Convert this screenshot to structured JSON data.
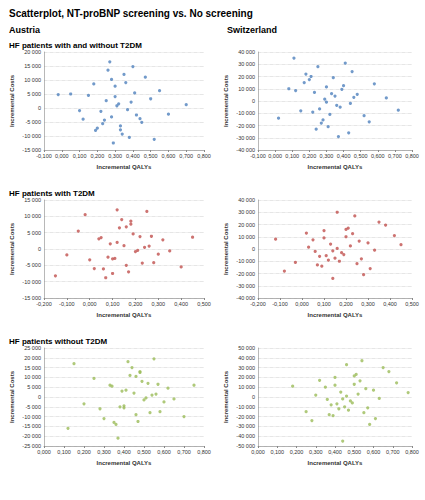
{
  "title": "Scatterplot, NT-proBNP screening vs. No screening",
  "columns": [
    "Austria",
    "Switzerland"
  ],
  "rows": [
    "HF patients with and without T2DM",
    "HF patients with T2DM",
    "HF patients without T2DM"
  ],
  "chart_data": [
    {
      "type": "scatter",
      "xlabel": "Incremental QALYs",
      "ylabel": "Incremental Costs",
      "xlim": [
        -0.1,
        0.8
      ],
      "xticks": [
        {
          "value": -0.1,
          "label": "-0,100"
        },
        {
          "value": 0,
          "label": "0,000"
        },
        {
          "value": 0.1,
          "label": "0,100"
        },
        {
          "value": 0.2,
          "label": "0,200"
        },
        {
          "value": 0.3,
          "label": "0,300"
        },
        {
          "value": 0.4,
          "label": "0,400"
        },
        {
          "value": 0.5,
          "label": "0,500"
        },
        {
          "value": 0.6,
          "label": "0,600"
        },
        {
          "value": 0.7,
          "label": "0,700"
        },
        {
          "value": 0.8,
          "label": "0,800"
        }
      ],
      "ylim": [
        -15000,
        20000
      ],
      "yticks": [
        {
          "value": -15000,
          "label": "-15 000"
        },
        {
          "value": -10000,
          "label": "-10 000"
        },
        {
          "value": -5000,
          "label": "-5 000"
        },
        0,
        {
          "value": 5000,
          "label": "5 000"
        },
        {
          "value": 10000,
          "label": "10 000"
        },
        {
          "value": 15000,
          "label": "15 000"
        },
        {
          "value": 20000,
          "label": "20 000"
        }
      ],
      "grid": true,
      "color": "#4f81bd",
      "marker": "circle",
      "x": [
        0.32,
        0.28,
        0.41,
        0.19,
        0.35,
        0.25,
        0.45,
        0.3,
        0.22,
        0.38,
        0.5,
        0.15,
        0.33,
        0.27,
        0.42,
        0.36,
        0.1,
        0.29,
        0.55,
        0.24,
        0.31,
        0.47,
        0.2,
        0.39,
        0.34,
        0.26,
        0.05,
        0.44,
        0.37,
        0.3,
        0.6,
        0.18,
        0.52,
        0.23,
        0.4,
        -0.02,
        0.33,
        0.28,
        0.7,
        0.12
      ],
      "values": [
        1500,
        -3200,
        5400,
        -8000,
        12000,
        2600,
        -5100,
        7800,
        -1200,
        -10500,
        3300,
        4500,
        -6400,
        16500,
        -2500,
        9100,
        -900,
        -12500,
        6200,
        -4300,
        800,
        11000,
        -7200,
        2100,
        -9300,
        13500,
        5000,
        -3800,
        -600,
        4100,
        -2200,
        8600,
        -11200,
        -5600,
        14800,
        4800,
        -7800,
        10200,
        1200,
        -4000
      ]
    },
    {
      "type": "scatter",
      "xlabel": "Incremental QALYs",
      "ylabel": "Incremental Costs",
      "xlim": [
        -0.1,
        0.8
      ],
      "xticks": [
        {
          "value": -0.1,
          "label": "-0,100"
        },
        {
          "value": 0,
          "label": "0,000"
        },
        {
          "value": 0.1,
          "label": "0,100"
        },
        {
          "value": 0.2,
          "label": "0,200"
        },
        {
          "value": 0.3,
          "label": "0,300"
        },
        {
          "value": 0.4,
          "label": "0,400"
        },
        {
          "value": 0.5,
          "label": "0,500"
        },
        {
          "value": 0.6,
          "label": "0,600"
        },
        {
          "value": 0.7,
          "label": "0,700"
        },
        {
          "value": 0.8,
          "label": "0,800"
        }
      ],
      "ylim": [
        -40000,
        40000
      ],
      "yticks": [
        {
          "value": -40000,
          "label": "-40 000"
        },
        {
          "value": -30000,
          "label": "-30 000"
        },
        {
          "value": -20000,
          "label": "-20 000"
        },
        {
          "value": -10000,
          "label": "-10 000"
        },
        0,
        {
          "value": 10000,
          "label": "10 000"
        },
        {
          "value": 20000,
          "label": "20 000"
        },
        {
          "value": 30000,
          "label": "30 000"
        },
        {
          "value": 40000,
          "label": "40 000"
        }
      ],
      "grid": true,
      "color": "#4f81bd",
      "marker": "circle",
      "x": [
        0.35,
        0.22,
        0.4,
        0.28,
        0.18,
        0.46,
        0.31,
        0.12,
        0.38,
        0.25,
        0.52,
        0.33,
        0.2,
        0.43,
        0.29,
        0.08,
        0.36,
        0.27,
        0.58,
        0.15,
        0.41,
        0.3,
        0.24,
        0.48,
        0.34,
        0.02,
        0.39,
        0.26,
        0.45,
        0.32,
        0.65,
        0.17,
        0.37,
        0.23,
        0.55,
        0.21,
        0.44,
        0.3,
        0.72,
        0.11
      ],
      "values": [
        4000,
        -9000,
        12500,
        -15500,
        22000,
        3000,
        -21000,
        8500,
        -5000,
        28000,
        -12000,
        6000,
        17500,
        -26000,
        1500,
        10000,
        -3500,
        -18000,
        14000,
        -8000,
        31000,
        -1000,
        -23000,
        5500,
        19000,
        -14000,
        9500,
        -6500,
        24000,
        -11000,
        2500,
        15000,
        -29000,
        7000,
        -17000,
        20000,
        -2000,
        11500,
        -7500,
        35000
      ]
    },
    {
      "type": "scatter",
      "xlabel": "Incremental QALYs",
      "ylabel": "Incremental Costs",
      "xlim": [
        -0.2,
        0.5
      ],
      "xticks": [
        {
          "value": -0.2,
          "label": "-0,200"
        },
        {
          "value": -0.1,
          "label": "-0,100"
        },
        {
          "value": 0,
          "label": "0,000"
        },
        {
          "value": 0.1,
          "label": "0,100"
        },
        {
          "value": 0.2,
          "label": "0,200"
        },
        {
          "value": 0.3,
          "label": "0,300"
        },
        {
          "value": 0.4,
          "label": "0,400"
        },
        {
          "value": 0.5,
          "label": "0,500"
        }
      ],
      "ylim": [
        -15000,
        15000
      ],
      "yticks": [
        {
          "value": -15000,
          "label": "-15 000"
        },
        {
          "value": -10000,
          "label": "-10 000"
        },
        {
          "value": -5000,
          "label": "-5 000"
        },
        0,
        {
          "value": 5000,
          "label": "5 000"
        },
        {
          "value": 10000,
          "label": "10 000"
        },
        {
          "value": 15000,
          "label": "15 000"
        }
      ],
      "grid": true,
      "color": "#c0504d",
      "marker": "circle",
      "x": [
        0.15,
        0.08,
        0.22,
        0.02,
        0.18,
        0.12,
        0.28,
        -0.05,
        0.2,
        0.1,
        0.32,
        0.05,
        0.16,
        0.25,
        -0.1,
        0.13,
        0.35,
        0.07,
        0.19,
        0.0,
        0.24,
        0.14,
        0.4,
        0.09,
        0.17,
        -0.02,
        0.27,
        0.11,
        0.21,
        0.04,
        0.3,
        0.16,
        -0.15,
        0.23,
        0.12,
        0.45,
        0.06,
        0.18,
        0.26,
        0.1
      ],
      "values": [
        1000,
        -2500,
        3800,
        -6000,
        8500,
        2000,
        -4200,
        5500,
        -800,
        -7500,
        2800,
        3500,
        -5000,
        11500,
        -1800,
        6500,
        -600,
        -8800,
        4600,
        -3300,
        500,
        9000,
        -5500,
        1600,
        -7000,
        10500,
        3900,
        -2900,
        -400,
        3100,
        -1600,
        6800,
        -8200,
        -4300,
        12000,
        3600,
        -6100,
        7600,
        900,
        -3000
      ]
    },
    {
      "type": "scatter",
      "xlabel": "Incremental QALYs",
      "ylabel": "Incremental Costs",
      "xlim": [
        -0.2,
        0.5
      ],
      "xticks": [
        {
          "value": -0.2,
          "label": "-0,200"
        },
        {
          "value": -0.1,
          "label": "-0,100"
        },
        {
          "value": 0,
          "label": "0,000"
        },
        {
          "value": 0.1,
          "label": "0,100"
        },
        {
          "value": 0.2,
          "label": "0,200"
        },
        {
          "value": 0.3,
          "label": "0,300"
        },
        {
          "value": 0.4,
          "label": "0,400"
        },
        {
          "value": 0.5,
          "label": "0,500"
        }
      ],
      "ylim": [
        -40000,
        40000
      ],
      "yticks": [
        {
          "value": -40000,
          "label": "-40 000"
        },
        {
          "value": -30000,
          "label": "-30 000"
        },
        {
          "value": -20000,
          "label": "-20 000"
        },
        {
          "value": -10000,
          "label": "-10 000"
        },
        0,
        {
          "value": 10000,
          "label": "10 000"
        },
        {
          "value": 20000,
          "label": "20 000"
        },
        {
          "value": 30000,
          "label": "30 000"
        },
        {
          "value": 40000,
          "label": "40 000"
        }
      ],
      "grid": true,
      "color": "#c0504d",
      "marker": "circle",
      "x": [
        0.18,
        0.05,
        0.25,
        0.1,
        0.14,
        0.3,
        -0.08,
        0.2,
        0.08,
        0.35,
        0.12,
        0.22,
        0.02,
        0.28,
        0.16,
        -0.12,
        0.19,
        0.09,
        0.42,
        0.15,
        0.24,
        0.06,
        0.31,
        0.13,
        0.21,
        -0.03,
        0.26,
        0.11,
        0.38,
        0.17,
        0.03,
        0.23,
        0.14,
        0.45,
        0.07,
        0.2,
        0.33,
        0.1,
        0.27,
        0.16
      ],
      "values": [
        -3000,
        7500,
        -12000,
        15000,
        -1500,
        5000,
        -18000,
        10000,
        -6000,
        22000,
        -9000,
        2500,
        13000,
        -21000,
        500,
        8000,
        -4500,
        -14000,
        11000,
        -7500,
        27000,
        -2000,
        -16000,
        4000,
        17000,
        -11000,
        6500,
        -5500,
        19500,
        -10000,
        1500,
        12500,
        -24000,
        3500,
        -13000,
        16000,
        -1000,
        9000,
        -8000,
        30000
      ]
    },
    {
      "type": "scatter",
      "xlabel": "Incremental QALYs",
      "ylabel": "Incremental Costs",
      "xlim": [
        0,
        0.8
      ],
      "xticks": [
        {
          "value": 0,
          "label": "0,000"
        },
        {
          "value": 0.1,
          "label": "0,100"
        },
        {
          "value": 0.2,
          "label": "0,200"
        },
        {
          "value": 0.3,
          "label": "0,300"
        },
        {
          "value": 0.4,
          "label": "0,400"
        },
        {
          "value": 0.5,
          "label": "0,500"
        },
        {
          "value": 0.6,
          "label": "0,600"
        },
        {
          "value": 0.7,
          "label": "0,700"
        },
        {
          "value": 0.8,
          "label": "0,800"
        }
      ],
      "ylim": [
        -25000,
        25000
      ],
      "yticks": [
        {
          "value": -25000,
          "label": "-25 000"
        },
        {
          "value": -20000,
          "label": "-20 000"
        },
        {
          "value": -15000,
          "label": "-15 000"
        },
        {
          "value": -10000,
          "label": "-10 000"
        },
        {
          "value": -5000,
          "label": "-5 000"
        },
        0,
        {
          "value": 5000,
          "label": "5 000"
        },
        {
          "value": 10000,
          "label": "10 000"
        },
        {
          "value": 15000,
          "label": "15 000"
        },
        {
          "value": 20000,
          "label": "20 000"
        },
        {
          "value": 25000,
          "label": "25 000"
        }
      ],
      "grid": true,
      "color": "#9bbb59",
      "marker": "circle",
      "x": [
        0.45,
        0.38,
        0.52,
        0.3,
        0.48,
        0.41,
        0.58,
        0.25,
        0.5,
        0.36,
        0.62,
        0.33,
        0.46,
        0.55,
        0.2,
        0.43,
        0.65,
        0.37,
        0.49,
        0.28,
        0.54,
        0.44,
        0.7,
        0.39,
        0.47,
        0.15,
        0.57,
        0.4,
        0.51,
        0.34,
        0.6,
        0.46,
        0.12,
        0.53,
        0.42,
        0.75,
        0.35,
        0.48,
        0.56,
        0.4
      ],
      "values": [
        2000,
        -5000,
        7000,
        -11000,
        13000,
        3500,
        -7500,
        9500,
        -1500,
        -14000,
        4500,
        6000,
        -9000,
        19500,
        -3500,
        11000,
        -1000,
        -21000,
        8000,
        -6000,
        1000,
        15000,
        -10000,
        3000,
        -12500,
        17000,
        6500,
        -4500,
        -500,
        5500,
        -2500,
        10500,
        -16000,
        -8000,
        18000,
        6000,
        -13000,
        12500,
        1500,
        -5500
      ]
    },
    {
      "type": "scatter",
      "xlabel": "Incremental QALYs",
      "ylabel": "Incremental Costs",
      "xlim": [
        0,
        0.8
      ],
      "xticks": [
        {
          "value": 0,
          "label": "0,000"
        },
        {
          "value": 0.1,
          "label": "0,100"
        },
        {
          "value": 0.2,
          "label": "0,200"
        },
        {
          "value": 0.3,
          "label": "0,300"
        },
        {
          "value": 0.4,
          "label": "0,400"
        },
        {
          "value": 0.5,
          "label": "0,500"
        },
        {
          "value": 0.6,
          "label": "0,600"
        },
        {
          "value": 0.7,
          "label": "0,700"
        },
        {
          "value": 0.8,
          "label": "0,800"
        }
      ],
      "ylim": [
        -50000,
        50000
      ],
      "yticks": [
        {
          "value": -50000,
          "label": "-50 000"
        },
        {
          "value": -40000,
          "label": "-40 000"
        },
        {
          "value": -30000,
          "label": "-30 000"
        },
        {
          "value": -20000,
          "label": "-20 000"
        },
        {
          "value": -10000,
          "label": "-10 000"
        },
        0,
        {
          "value": 10000,
          "label": "10 000"
        },
        {
          "value": 20000,
          "label": "20 000"
        },
        {
          "value": 30000,
          "label": "30 000"
        },
        {
          "value": 40000,
          "label": "40 000"
        },
        {
          "value": 50000,
          "label": "50 000"
        }
      ],
      "grid": true,
      "color": "#9bbb59",
      "marker": "circle",
      "x": [
        0.48,
        0.35,
        0.55,
        0.4,
        0.44,
        0.6,
        0.28,
        0.5,
        0.38,
        0.65,
        0.42,
        0.52,
        0.32,
        0.58,
        0.46,
        0.18,
        0.49,
        0.39,
        0.72,
        0.45,
        0.54,
        0.36,
        0.61,
        0.43,
        0.51,
        0.25,
        0.56,
        0.41,
        0.68,
        0.47,
        0.3,
        0.53,
        0.44,
        0.78,
        0.37,
        0.5,
        0.63,
        0.4,
        0.57,
        0.46
      ],
      "values": [
        -4000,
        10000,
        -16000,
        20000,
        -2000,
        7000,
        -24000,
        13000,
        -8000,
        30000,
        -12000,
        3000,
        17000,
        -28000,
        1000,
        11000,
        -6000,
        -19000,
        14500,
        -10000,
        37000,
        -2500,
        -22000,
        5000,
        23000,
        -15000,
        8500,
        -7000,
        26000,
        -13500,
        2000,
        16500,
        -45000,
        4500,
        -18000,
        21500,
        -1500,
        12000,
        -11000,
        33000
      ]
    }
  ]
}
